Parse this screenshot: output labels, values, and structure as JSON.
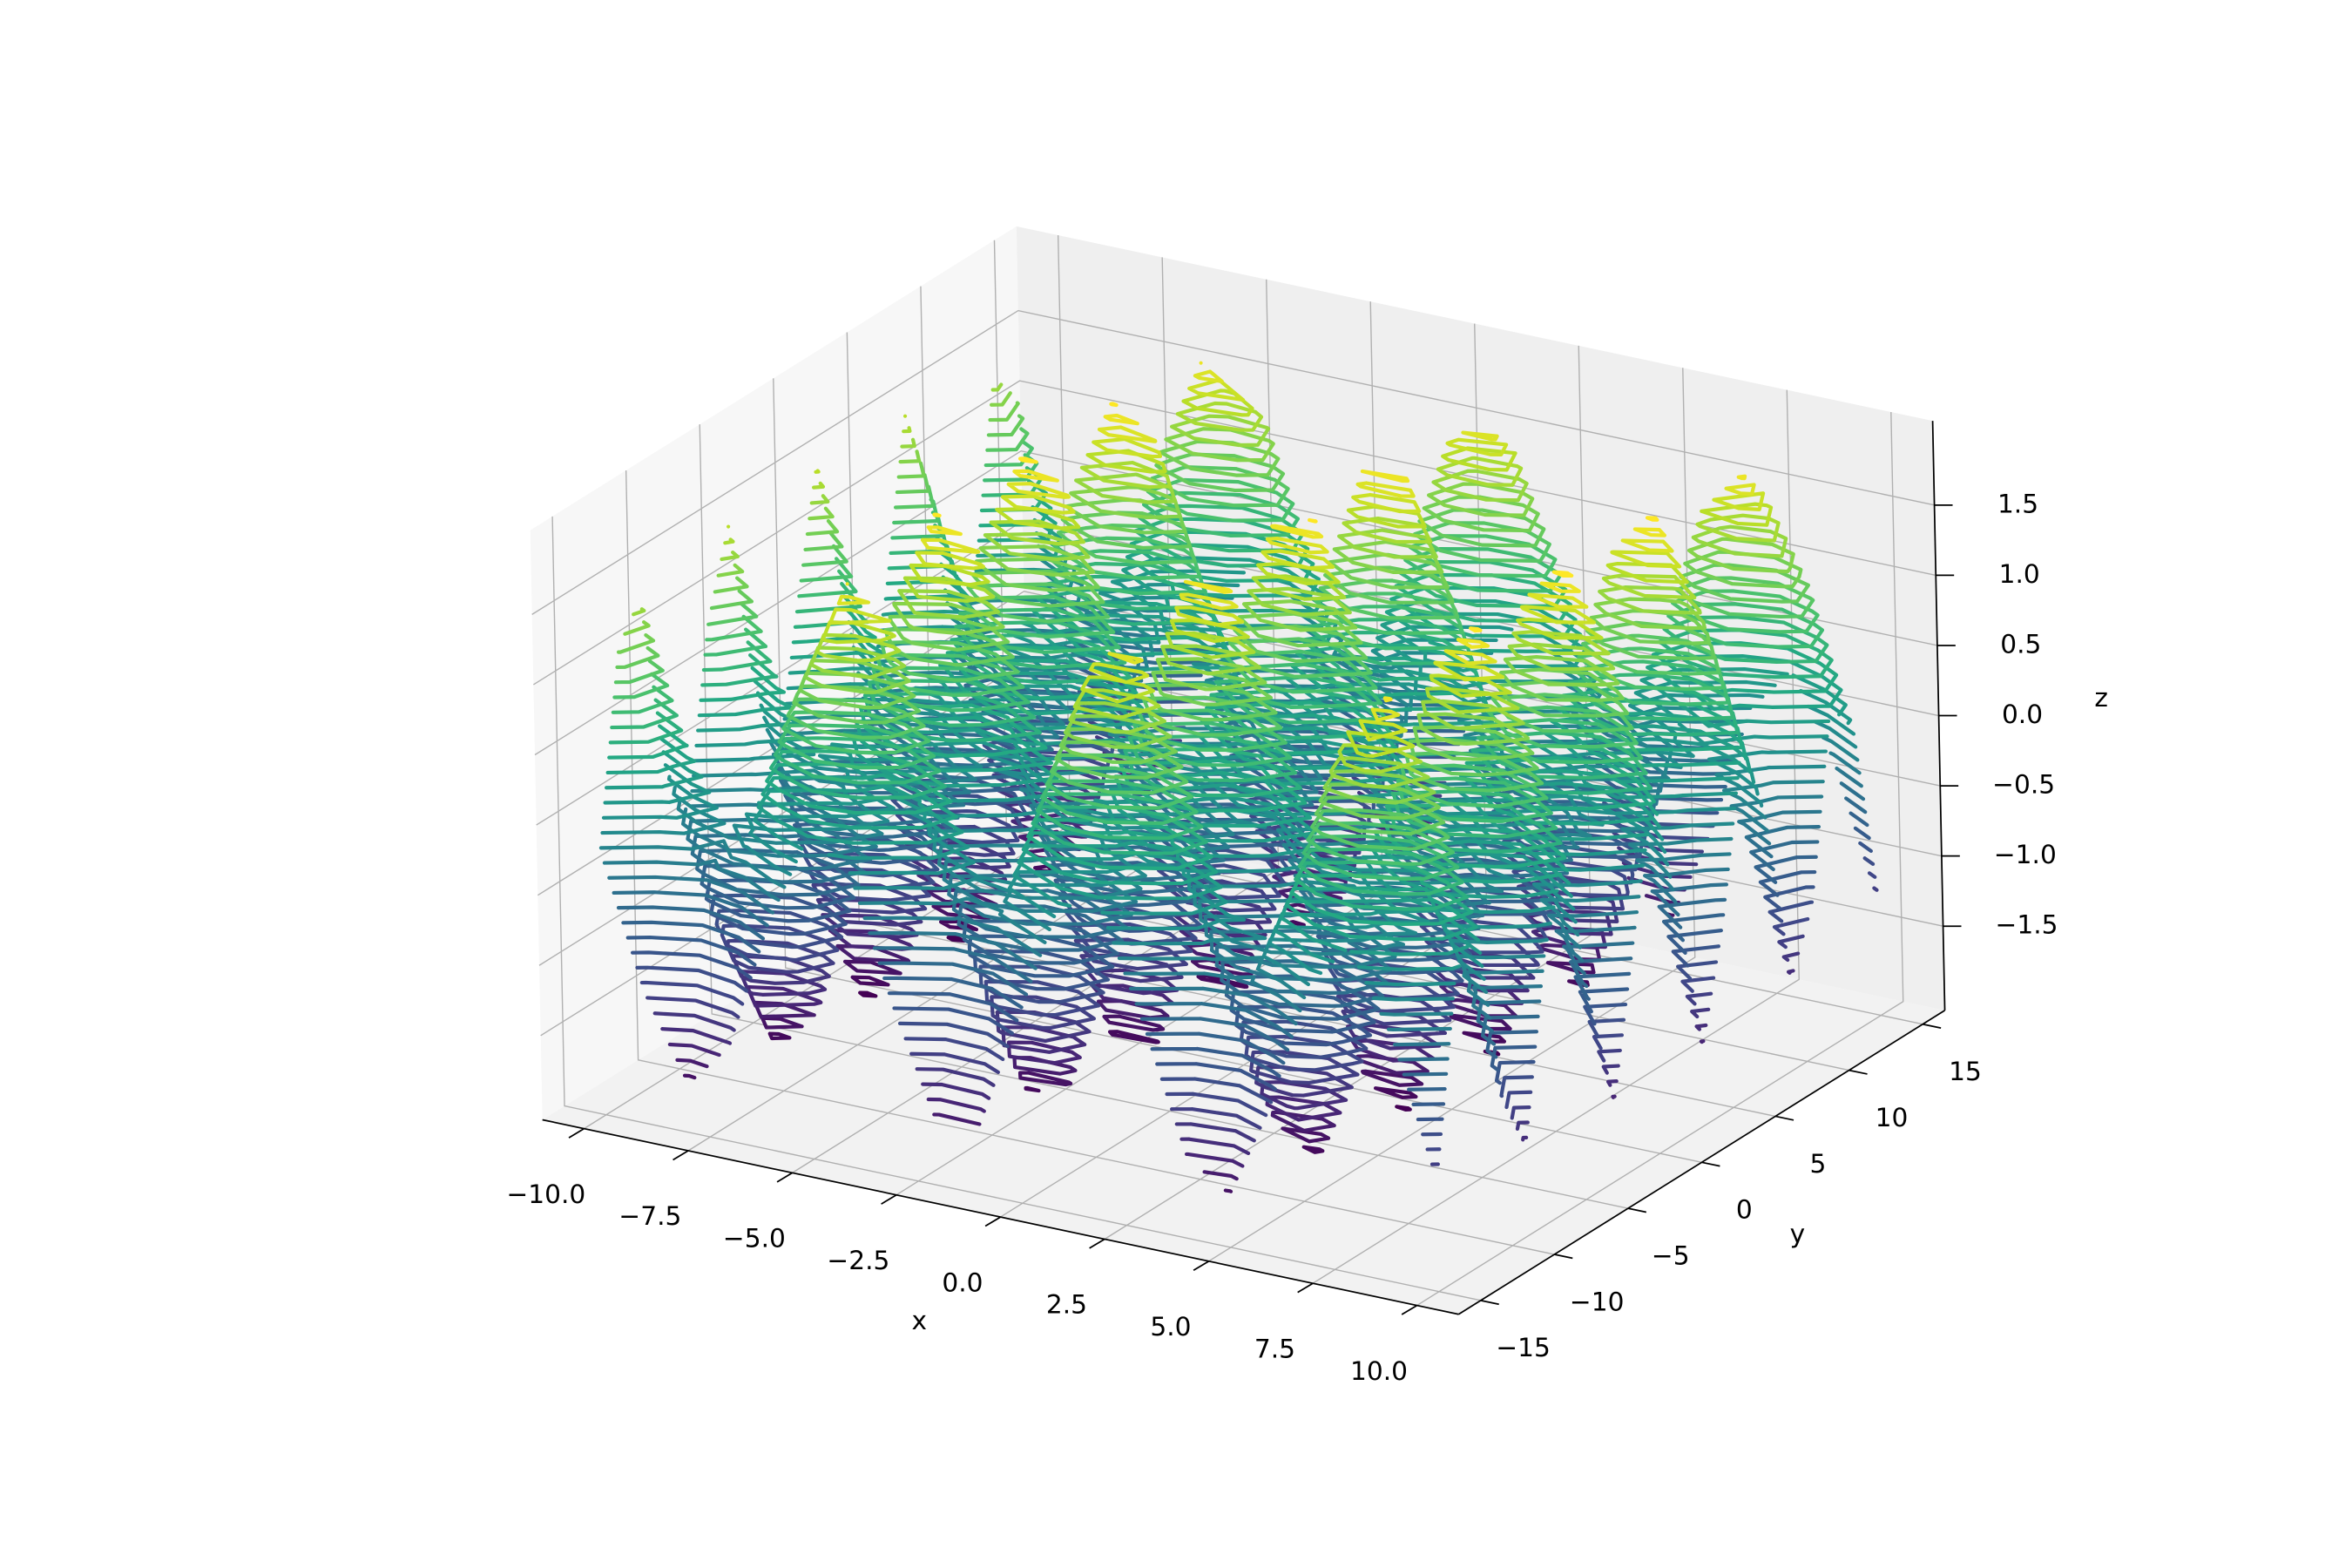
{
  "chart_data": {
    "type": "contour3d",
    "xlabel": "x",
    "ylabel": "y",
    "zlabel": "z",
    "colormap": "viridis",
    "xlim": [
      -11,
      11
    ],
    "ylim": [
      -16.5,
      16.5
    ],
    "zlim": [
      -2.1,
      2.1
    ],
    "xticks": [
      {
        "value": -10,
        "label": "−10.0"
      },
      {
        "value": -7.5,
        "label": "−7.5"
      },
      {
        "value": -5,
        "label": "−5.0"
      },
      {
        "value": -2.5,
        "label": "−2.5"
      },
      {
        "value": 0,
        "label": "0.0"
      },
      2.5,
      {
        "value": 5,
        "label": "5.0"
      },
      7.5,
      {
        "value": 10,
        "label": "10.0"
      }
    ],
    "yticks": [
      {
        "value": -15,
        "label": "−15"
      },
      {
        "value": -10,
        "label": "−10"
      },
      {
        "value": -5,
        "label": "−5"
      },
      0,
      5,
      10,
      15
    ],
    "zticks": [
      {
        "value": -1.5,
        "label": "−1.5"
      },
      {
        "value": -1,
        "label": "−1.0"
      },
      {
        "value": -0.5,
        "label": "−0.5"
      },
      {
        "value": 0,
        "label": "0.0"
      },
      0.5,
      {
        "value": 1,
        "label": "1.0"
      },
      1.5
    ],
    "levels": [
      -1.9,
      -1.8,
      -1.7,
      -1.6,
      -1.5,
      -1.4,
      -1.3,
      -1.2,
      -1.1,
      -1.0,
      -0.9,
      -0.8,
      -0.7,
      -0.6,
      -0.5,
      -0.4,
      -0.3,
      -0.2,
      -0.1,
      0.0,
      0.1,
      0.2,
      0.3,
      0.4,
      0.5,
      0.6,
      0.7,
      0.8,
      0.9,
      1.0,
      1.1,
      1.2,
      1.3,
      1.4,
      1.5,
      1.6,
      1.7,
      1.8,
      1.9
    ],
    "x": [
      -10,
      -9,
      -8,
      -7,
      -6,
      -5,
      -4,
      -3,
      -2,
      -1,
      0,
      1,
      2,
      3,
      4,
      5,
      6,
      7,
      8,
      9,
      10
    ],
    "y": [
      -15,
      -13.5,
      -12,
      -10.5,
      -9,
      -7.5,
      -6,
      -4.5,
      -3,
      -1.5,
      0,
      1.5,
      3,
      4.5,
      6,
      7.5,
      9,
      10.5,
      12,
      13.5,
      15
    ],
    "z": [
      [
        -0.22,
        -1.17,
        -1.75,
        -1.42,
        -0.48,
        0.2,
        0,
        -0.9,
        -1.67,
        -1.6,
        -0.76,
        0.08,
        0.15,
        -0.62,
        -1.52,
        -1.72,
        -1.04,
        -0.1,
        0.23,
        -0.35,
        -1.3
      ],
      [
        1.13,
        0.18,
        -0.4,
        -0.07,
        0.87,
        1.55,
        1.35,
        0.45,
        -0.32,
        -0.25,
        0.59,
        1.43,
        1.5,
        0.73,
        -0.17,
        -0.37,
        0.31,
        1.25,
        1.58,
        1,
        0.05
      ],
      [
        1.38,
        0.43,
        -0.15,
        0.18,
        1.12,
        1.8,
        1.6,
        0.7,
        -0.07,
        0,
        0.84,
        1.68,
        1.75,
        0.98,
        0.08,
        -0.12,
        0.56,
        1.5,
        1.83,
        1.25,
        0.3
      ],
      [
        0.06,
        -0.89,
        -1.47,
        -1.14,
        -0.2,
        0.48,
        0.28,
        -0.62,
        -1.39,
        -1.32,
        -0.48,
        0.36,
        0.43,
        -0.34,
        -1.24,
        -1.44,
        -0.76,
        0.18,
        0.51,
        -0.07,
        -1.02
      ],
      [
        -0.37,
        -1.32,
        -1.9,
        -1.57,
        -0.63,
        0.05,
        -0.15,
        -1.05,
        -1.82,
        -1.75,
        -0.91,
        -0.07,
        0,
        -0.77,
        -1.67,
        -1.87,
        -1.19,
        -0.25,
        0.08,
        -0.5,
        -1.45
      ],
      [
        0.89,
        -0.06,
        -0.64,
        -0.31,
        0.63,
        1.31,
        1.11,
        0.21,
        -0.56,
        -0.49,
        0.35,
        1.19,
        1.26,
        0.49,
        -0.41,
        -0.61,
        0.07,
        1.01,
        1.34,
        0.76,
        -0.19
      ],
      [
        1.5,
        0.55,
        -0.03,
        0.3,
        1.24,
        1.92,
        1.72,
        0.82,
        0.05,
        0.12,
        0.96,
        1.8,
        1.87,
        1.1,
        0.2,
        0,
        0.68,
        1.62,
        1.95,
        1.37,
        0.42
      ],
      [
        0.33,
        -0.62,
        -1.2,
        -0.87,
        0.07,
        0.75,
        0.55,
        -0.35,
        -1.12,
        -1.05,
        -0.21,
        0.63,
        0.7,
        -0.07,
        -0.97,
        -1.17,
        -0.49,
        0.45,
        0.78,
        0.2,
        -0.75
      ],
      [
        -0.45,
        -1.4,
        -1.98,
        -1.65,
        -0.71,
        -0.03,
        -0.23,
        -1.13,
        -1.9,
        -1.83,
        -0.99,
        -0.15,
        -0.08,
        -0.85,
        -1.75,
        -1.95,
        -1.27,
        -0.33,
        0,
        -0.58,
        -1.53
      ],
      [
        0.61,
        -0.34,
        -0.92,
        -0.59,
        0.35,
        1.03,
        0.83,
        -0.07,
        -0.84,
        -0.77,
        0.07,
        0.91,
        0.98,
        0.21,
        -0.69,
        -0.89,
        -0.21,
        0.73,
        1.06,
        0.48,
        -0.47
      ],
      [
        1.54,
        0.59,
        0.01,
        0.34,
        1.28,
        1.96,
        1.76,
        0.86,
        0.09,
        0.16,
        1,
        1.84,
        1.91,
        1.14,
        0.24,
        0.04,
        0.72,
        1.66,
        1.99,
        1.41,
        0.46
      ],
      [
        0.61,
        -0.34,
        -0.92,
        -0.59,
        0.35,
        1.03,
        0.83,
        -0.07,
        -0.84,
        -0.77,
        0.07,
        0.91,
        0.98,
        0.21,
        -0.69,
        -0.89,
        -0.21,
        0.73,
        1.06,
        0.48,
        -0.47
      ],
      [
        -0.45,
        -1.4,
        -1.98,
        -1.65,
        -0.71,
        -0.03,
        -0.23,
        -1.13,
        -1.9,
        -1.83,
        -0.99,
        -0.15,
        -0.08,
        -0.85,
        -1.75,
        -1.95,
        -1.27,
        -0.33,
        0,
        -0.58,
        -1.53
      ],
      [
        0.33,
        -0.62,
        -1.2,
        -0.87,
        0.07,
        0.75,
        0.55,
        -0.35,
        -1.12,
        -1.05,
        -0.21,
        0.63,
        0.7,
        -0.07,
        -0.97,
        -1.17,
        -0.49,
        0.45,
        0.78,
        0.2,
        -0.75
      ],
      [
        1.5,
        0.55,
        -0.03,
        0.3,
        1.24,
        1.92,
        1.72,
        0.82,
        0.05,
        0.12,
        0.96,
        1.8,
        1.87,
        1.1,
        0.2,
        0,
        0.68,
        1.62,
        1.95,
        1.37,
        0.42
      ],
      [
        0.89,
        -0.06,
        -0.64,
        -0.31,
        0.63,
        1.31,
        1.11,
        0.21,
        -0.56,
        -0.49,
        0.35,
        1.19,
        1.26,
        0.49,
        -0.41,
        -0.61,
        0.07,
        1.01,
        1.34,
        0.76,
        -0.19
      ],
      [
        -0.37,
        -1.32,
        -1.9,
        -1.57,
        -0.63,
        0.05,
        -0.15,
        -1.05,
        -1.82,
        -1.75,
        -0.91,
        -0.07,
        0,
        -0.77,
        -1.67,
        -1.87,
        -1.19,
        -0.25,
        0.08,
        -0.5,
        -1.45
      ],
      [
        0.06,
        -0.89,
        -1.47,
        -1.14,
        -0.2,
        0.48,
        0.28,
        -0.62,
        -1.39,
        -1.32,
        -0.48,
        0.36,
        0.43,
        -0.34,
        -1.24,
        -1.44,
        -0.76,
        0.18,
        0.51,
        -0.07,
        -1.02
      ],
      [
        1.38,
        0.43,
        -0.15,
        0.18,
        1.12,
        1.8,
        1.6,
        0.7,
        -0.07,
        0,
        0.84,
        1.68,
        1.75,
        0.98,
        0.08,
        -0.12,
        0.56,
        1.5,
        1.83,
        1.25,
        0.3
      ],
      [
        1.13,
        0.18,
        -0.4,
        -0.07,
        0.87,
        1.55,
        1.35,
        0.45,
        -0.32,
        -0.25,
        0.59,
        1.43,
        1.5,
        0.73,
        -0.17,
        -0.37,
        0.31,
        1.25,
        1.58,
        1,
        0.05
      ],
      [
        -0.22,
        -1.17,
        -1.75,
        -1.42,
        -0.48,
        0.2,
        0,
        -0.9,
        -1.67,
        -1.6,
        -0.76,
        0.08,
        0.15,
        -0.62,
        -1.52,
        -1.72,
        -1.04,
        -0.1,
        0.23,
        -0.35,
        -1.3
      ]
    ]
  }
}
